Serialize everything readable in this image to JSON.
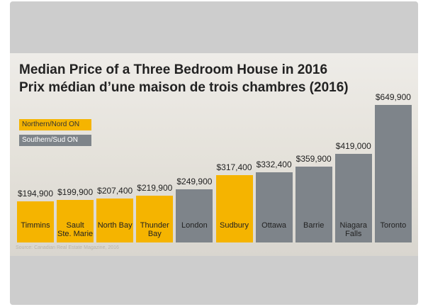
{
  "chart_data": {
    "type": "bar",
    "title": "Median Price of a Three Bedroom House in 2016",
    "subtitle": "Prix médian d’une maison de trois chambres (2016)",
    "source": "Source: Canadian Real Estate Magazine, 2016",
    "categories": [
      "Timmins",
      "Sault\nSte. Marie",
      "North Bay",
      "Thunder\nBay",
      "London",
      "Sudbury",
      "Ottawa",
      "Barrie",
      "Niagara\nFalls",
      "Toronto"
    ],
    "series": [
      {
        "name": "Northern/Nord ON",
        "color": "#f5b400",
        "values": [
          194900,
          199900,
          207400,
          219900,
          null,
          317400,
          null,
          null,
          null,
          null
        ],
        "value_labels": [
          "$194,900",
          "$199,900",
          "$207,400",
          "$219,900",
          null,
          "$317,400",
          null,
          null,
          null,
          null
        ]
      },
      {
        "name": "Southern/Sud ON",
        "color": "#7e848a",
        "values": [
          null,
          null,
          null,
          null,
          249900,
          null,
          332400,
          359900,
          419000,
          649900
        ],
        "value_labels": [
          null,
          null,
          null,
          null,
          "$249,900",
          null,
          "$332,400",
          "$359,900",
          "$419,000",
          "$649,900"
        ]
      }
    ]
  }
}
